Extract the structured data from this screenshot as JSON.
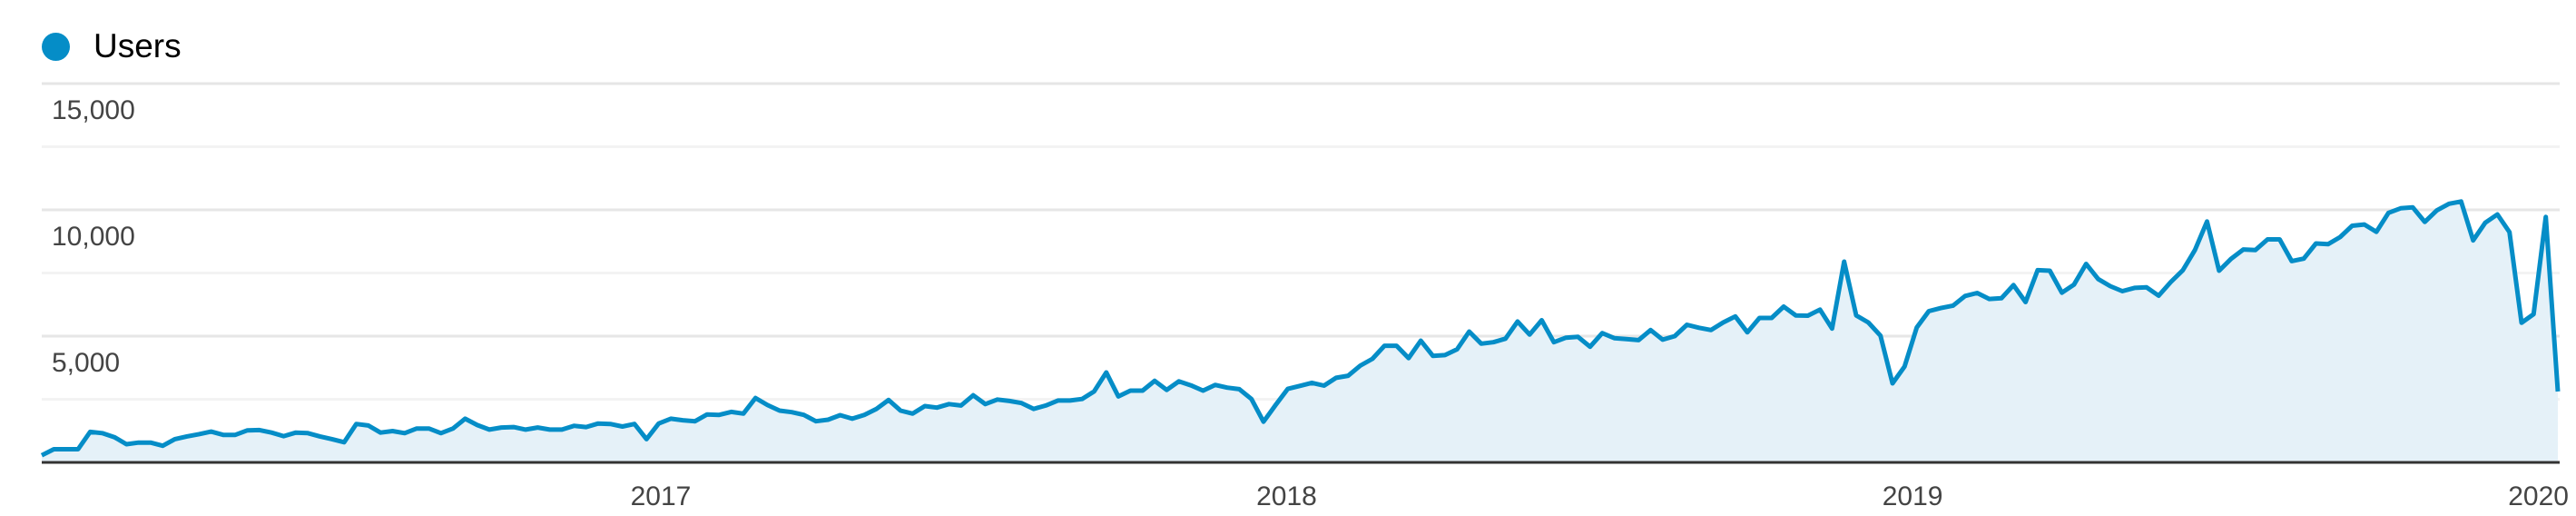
{
  "legend": {
    "label": "Users",
    "color": "#058dc7"
  },
  "chart_data": {
    "type": "area",
    "title": "",
    "xlabel": "",
    "ylabel": "",
    "ylim": [
      0,
      15000
    ],
    "y_ticks": [
      {
        "value": 15000,
        "label": "15,000"
      },
      {
        "value": 10000,
        "label": "10,000"
      },
      {
        "value": 5000,
        "label": "5,000"
      }
    ],
    "y_minor_gridlines": [
      2500,
      7500,
      12500
    ],
    "x_ticks": [
      {
        "date": "2017-01-01",
        "label": "2017"
      },
      {
        "date": "2018-01-01",
        "label": "2018"
      },
      {
        "date": "2019-01-01",
        "label": "2019"
      },
      {
        "date": "2020-01-01",
        "label": "2020"
      }
    ],
    "x_start": "2016-01-06",
    "x_interval": "weekly",
    "grid": true,
    "legend_position": "top-left",
    "series": [
      {
        "name": "Users",
        "color": "#058dc7",
        "fill": "#e5f1f8",
        "values": [
          280,
          520,
          520,
          520,
          1210,
          1160,
          1000,
          720,
          785,
          785,
          660,
          920,
          1030,
          1120,
          1220,
          1090,
          1090,
          1270,
          1280,
          1180,
          1040,
          1180,
          1160,
          1030,
          920,
          800,
          1520,
          1460,
          1180,
          1240,
          1160,
          1340,
          1340,
          1160,
          1340,
          1730,
          1480,
          1300,
          1380,
          1400,
          1300,
          1380,
          1300,
          1300,
          1450,
          1400,
          1540,
          1520,
          1420,
          1520,
          920,
          1540,
          1730,
          1670,
          1630,
          1900,
          1880,
          2000,
          1930,
          2550,
          2270,
          2050,
          1990,
          1880,
          1630,
          1690,
          1870,
          1730,
          1880,
          2120,
          2470,
          2050,
          1930,
          2230,
          2170,
          2310,
          2250,
          2660,
          2310,
          2490,
          2430,
          2350,
          2120,
          2250,
          2450,
          2450,
          2510,
          2810,
          3560,
          2610,
          2840,
          2840,
          3230,
          2870,
          3210,
          3050,
          2840,
          3070,
          2960,
          2900,
          2510,
          1610,
          2270,
          2910,
          3030,
          3150,
          3040,
          3350,
          3430,
          3830,
          4100,
          4620,
          4620,
          4130,
          4820,
          4220,
          4250,
          4480,
          5180,
          4700,
          4760,
          4900,
          5580,
          5060,
          5630,
          4760,
          4940,
          4970,
          4580,
          5120,
          4920,
          4880,
          4840,
          5240,
          4860,
          5000,
          5450,
          5330,
          5240,
          5540,
          5780,
          5150,
          5720,
          5720,
          6170,
          5820,
          5810,
          6050,
          5300,
          7950,
          5820,
          5540,
          5020,
          3130,
          3800,
          5340,
          5990,
          6110,
          6210,
          6590,
          6710,
          6470,
          6500,
          7020,
          6350,
          7610,
          7590,
          6720,
          7040,
          7860,
          7260,
          6980,
          6780,
          6910,
          6930,
          6600,
          7140,
          7610,
          8410,
          9540,
          7590,
          8070,
          8430,
          8410,
          8830,
          8830,
          7970,
          8070,
          8670,
          8640,
          8920,
          9370,
          9420,
          9130,
          9880,
          10060,
          10100,
          9520,
          9980,
          10240,
          10330,
          8790,
          9490,
          9820,
          9120,
          5530,
          5870,
          9720,
          2810
        ]
      }
    ]
  }
}
